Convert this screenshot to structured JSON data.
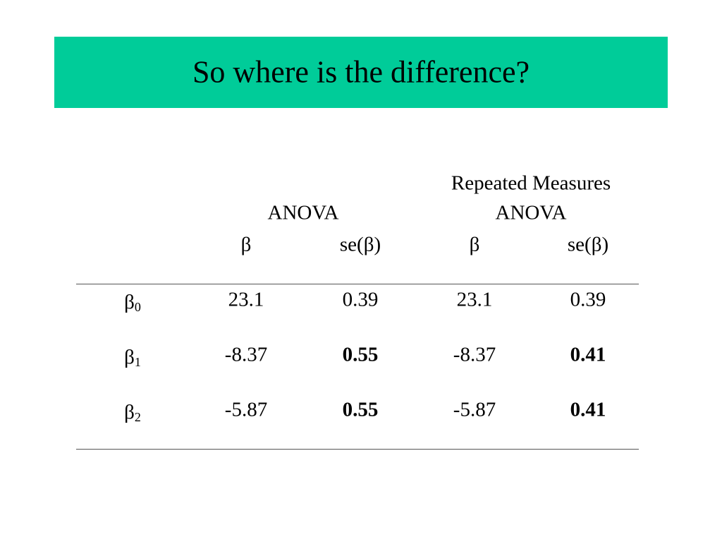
{
  "title": "So where is the difference?",
  "table": {
    "groups": [
      {
        "lines": [
          "ANOVA"
        ]
      },
      {
        "lines": [
          "Repeated Measures",
          "ANOVA"
        ]
      }
    ],
    "columns": [
      "β",
      "se(β)",
      "β",
      "se(β)"
    ],
    "rows": [
      {
        "label": {
          "symbol": "β",
          "subscript": "0"
        },
        "cells": [
          "23.1",
          "0.39",
          "23.1",
          "0.39"
        ]
      },
      {
        "label": {
          "symbol": "β",
          "subscript": "1"
        },
        "cells": [
          "-8.37",
          "0.55",
          "-8.37",
          "0.41"
        ]
      },
      {
        "label": {
          "symbol": "β",
          "subscript": "2"
        },
        "cells": [
          "-5.87",
          "0.55",
          "-5.87",
          "0.41"
        ]
      }
    ]
  }
}
